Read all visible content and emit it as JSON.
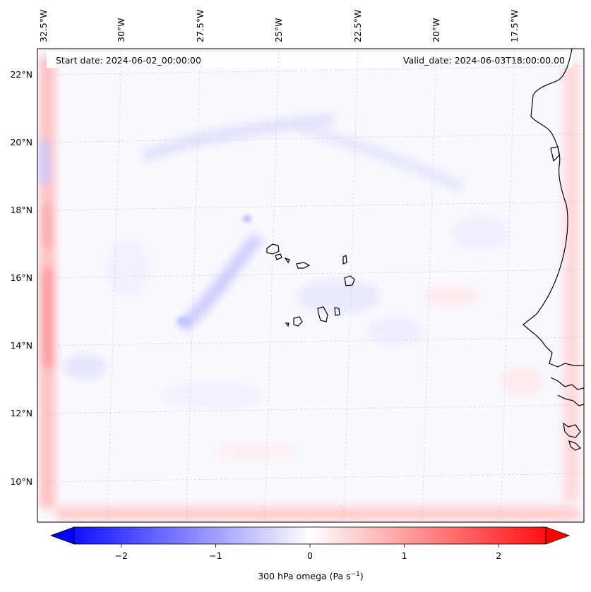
{
  "header": {
    "start_date": "Start date: 2024-06-02_00:00:00",
    "valid_date": "Valid_date: 2024-06-03T18:00:00.00"
  },
  "longitude_ticks": [
    "32.5°W",
    "30°W",
    "27.5°W",
    "25°W",
    "22.5°W",
    "20°W",
    "17.5°W"
  ],
  "latitude_ticks": [
    "22°N",
    "20°N",
    "18°N",
    "16°N",
    "14°N",
    "12°N",
    "10°N"
  ],
  "colorbar": {
    "ticks": [
      "−2",
      "−1",
      "0",
      "1",
      "2"
    ],
    "tick_values": [
      -2,
      -1,
      0,
      1,
      2
    ],
    "range": [
      -2.5,
      2.5
    ],
    "label": "300 hPa omega (Pa s",
    "label_sup": "−1",
    "label_end": ")",
    "colormap": "bwr",
    "low_color": "#0000ff",
    "mid_color": "#ffffff",
    "high_color": "#ff0000",
    "extend": "both"
  },
  "map": {
    "field": "300 hPa omega",
    "lon_range": [
      -33,
      -15.5
    ],
    "lat_range": [
      9,
      22.5
    ],
    "gridlines": true,
    "coastline_color": "#000000"
  }
}
